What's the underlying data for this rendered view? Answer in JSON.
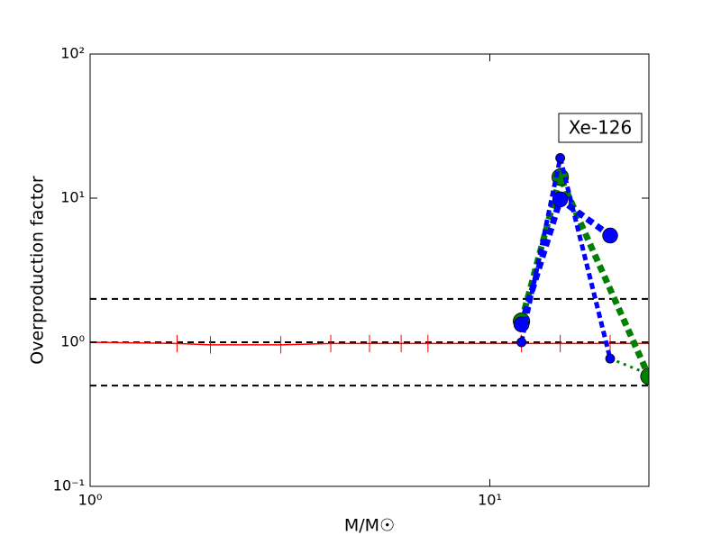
{
  "chart_data": {
    "type": "line",
    "xlabel": "M/M☉",
    "ylabel": "Overproduction factor",
    "annotation": "Xe-126",
    "xscale": "log",
    "yscale": "log",
    "xlim": [
      1,
      25
    ],
    "ylim": [
      0.1,
      100
    ],
    "xticks": [
      {
        "value": 1,
        "label": "10⁰"
      },
      {
        "value": 10,
        "label": "10¹"
      }
    ],
    "yticks": [
      {
        "value": 0.1,
        "label": "10⁻¹"
      },
      {
        "value": 1,
        "label": "10⁰"
      },
      {
        "value": 10,
        "label": "10¹"
      },
      {
        "value": 100,
        "label": "10²"
      }
    ],
    "hlines": [
      2,
      1,
      0.5
    ],
    "hline_color": "#000000",
    "series": [
      {
        "color": "#ff0000",
        "style": "solid",
        "x": [
          1,
          1.65,
          2,
          3,
          4,
          5,
          6,
          7,
          12,
          15,
          20,
          25
        ],
        "values": [
          1,
          0.98,
          0.96,
          0.96,
          0.98,
          0.98,
          0.98,
          0.98,
          0.98,
          0.98,
          0.98,
          0.98
        ],
        "errors": [
          0.15,
          0.15,
          0.15,
          0.15,
          0.15,
          0.15,
          0.15,
          0.15,
          0.15,
          0.15,
          0.15,
          0.15
        ]
      },
      {
        "color": "#008000",
        "style": "thick",
        "x": [
          12,
          15,
          25
        ],
        "values": [
          1.4,
          14,
          0.58
        ],
        "marker": 11
      },
      {
        "color": "#008000",
        "style": "thin",
        "x": [
          20,
          25
        ],
        "values": [
          0.77,
          0.6
        ],
        "marker": 0
      },
      {
        "color": "#0000ff",
        "style": "thick",
        "x": [
          12,
          15,
          20
        ],
        "values": [
          1.33,
          9.8,
          5.5
        ],
        "marker": 10
      },
      {
        "color": "#0000ff",
        "style": "medium",
        "x": [
          12,
          15,
          20
        ],
        "values": [
          1.0,
          19,
          0.77
        ],
        "marker": 6
      }
    ]
  }
}
